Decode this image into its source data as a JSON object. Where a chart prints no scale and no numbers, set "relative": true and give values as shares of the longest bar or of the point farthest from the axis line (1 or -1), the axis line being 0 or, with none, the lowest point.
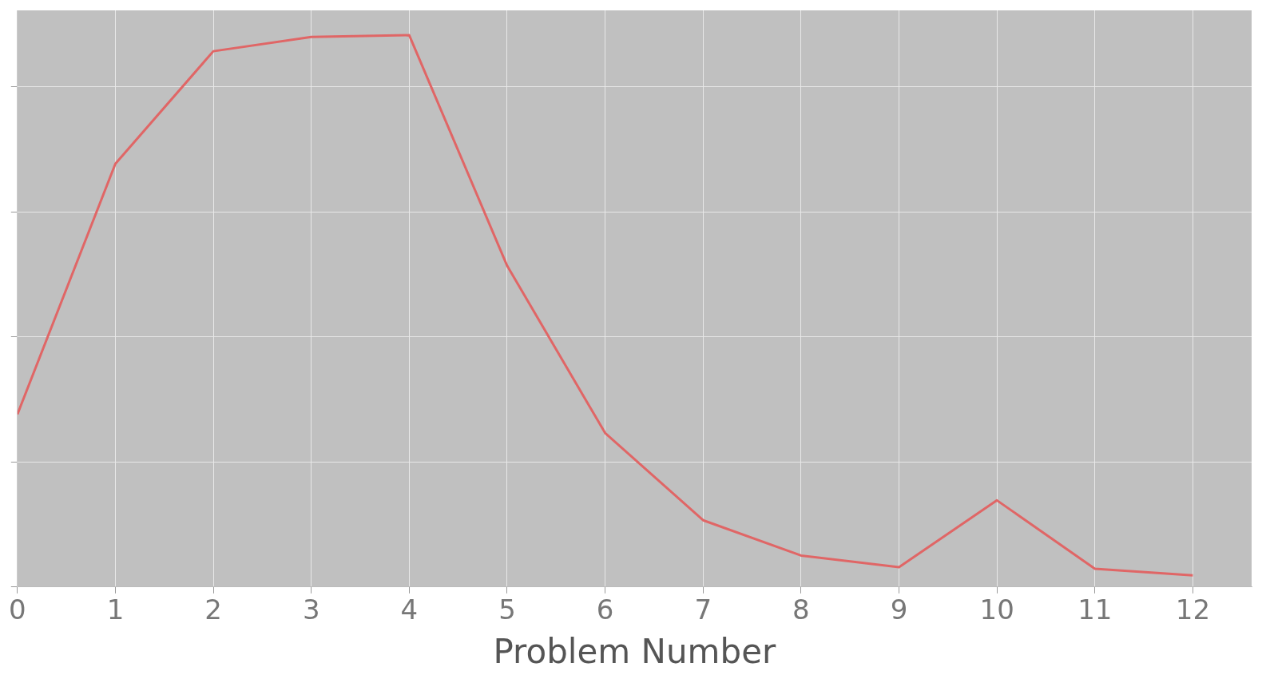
{
  "chart_data": {
    "type": "line",
    "relative": true,
    "xlabel": "Problem Number",
    "x": [
      0,
      1,
      2,
      3,
      4,
      5,
      6,
      7,
      8,
      9,
      10,
      11,
      12
    ],
    "series": [
      {
        "color": "#e06666",
        "values": [
          0.313,
          0.767,
          0.971,
          0.997,
          1,
          0.582,
          0.279,
          0.121,
          0.057,
          0.036,
          0.157,
          0.033,
          0.021
        ]
      }
    ],
    "xlim": [
      0,
      12.6
    ],
    "xticks": [
      0,
      1,
      2,
      3,
      4,
      5,
      6,
      7,
      8,
      9,
      10,
      11,
      12
    ],
    "grid": true,
    "tick_labels": "x",
    "marker": "none",
    "line_style": "solid",
    "legend": false
  }
}
